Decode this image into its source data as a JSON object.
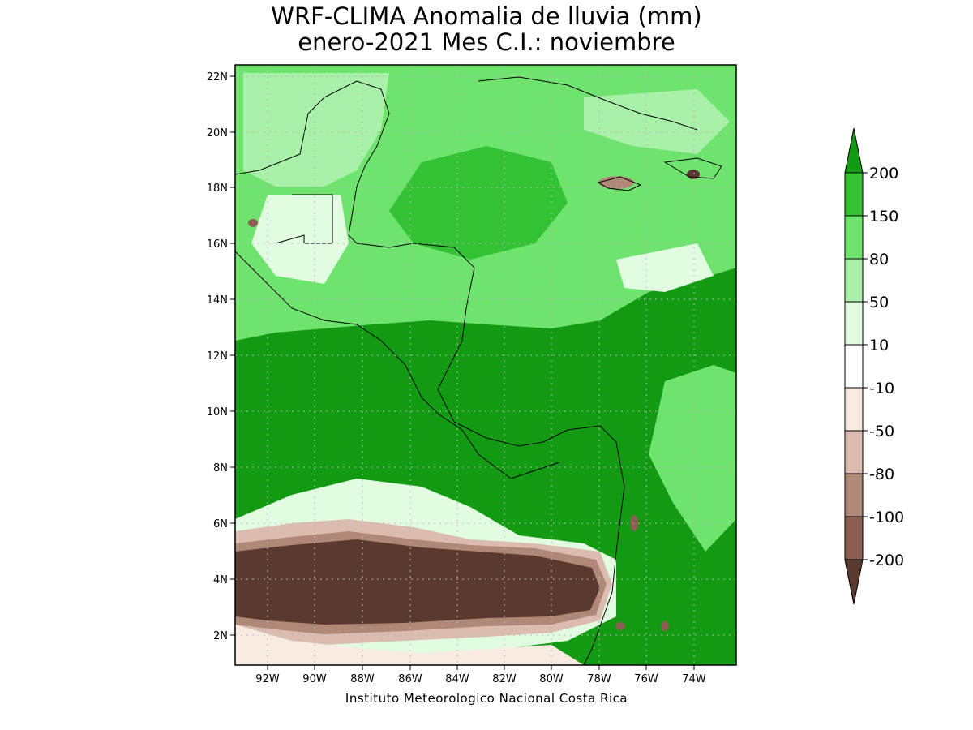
{
  "header": {
    "line1": "WRF-CLIMA Anomalia de lluvia (mm)",
    "line2": "enero-2021 Mes C.I.: noviembre"
  },
  "axes": {
    "lat_labels": [
      "22N",
      "20N",
      "18N",
      "16N",
      "14N",
      "12N",
      "10N",
      "8N",
      "6N",
      "4N",
      "2N"
    ],
    "lon_labels": [
      "92W",
      "90W",
      "88W",
      "86W",
      "84W",
      "82W",
      "80W",
      "78W",
      "76W",
      "74W"
    ]
  },
  "colorbar": {
    "labels": [
      "200",
      "150",
      "80",
      "50",
      "10",
      "-10",
      "-50",
      "-80",
      "-100",
      "-200"
    ],
    "colors": [
      "#129b12",
      "#33c233",
      "#6ee36e",
      "#a9f0a9",
      "#e2fce2",
      "#ffffff",
      "#f8ece2",
      "#dcbcb0",
      "#b08878",
      "#8a5e50",
      "#5a3a30"
    ]
  },
  "credit": "Instituto Meteorologico Nacional Costa Rica"
}
